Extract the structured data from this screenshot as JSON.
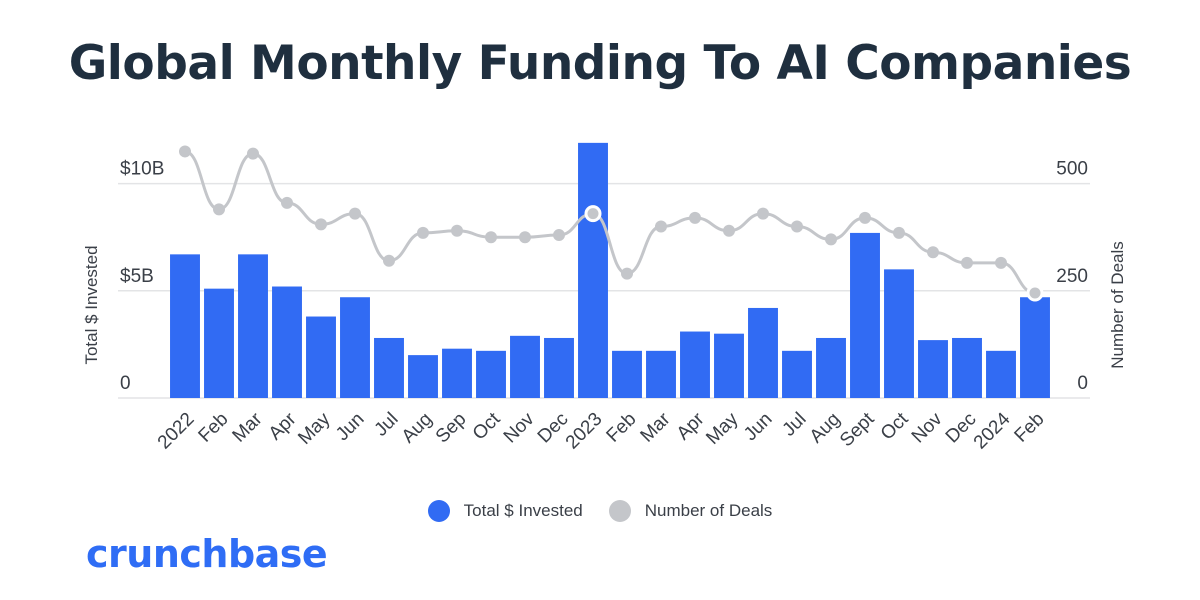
{
  "title": "Global Monthly Funding To AI Companies",
  "brand": {
    "name": "crunchbase",
    "color": "#2f6df5"
  },
  "colors": {
    "bar": "#316bf3",
    "line": "#c4c6ca",
    "grid": "#e3e4e6"
  },
  "chart_data": {
    "type": "bar",
    "title": "Global Monthly Funding To AI Companies",
    "categories": [
      "2022",
      "Feb",
      "Mar",
      "Apr",
      "May",
      "Jun",
      "Jul",
      "Aug",
      "Sep",
      "Oct",
      "Nov",
      "Dec",
      "2023",
      "Feb",
      "Mar",
      "Apr",
      "May",
      "Jun",
      "Jul",
      "Aug",
      "Sept",
      "Oct",
      "Nov",
      "Dec",
      "2024",
      "Feb"
    ],
    "series": [
      {
        "name": "Total $ Invested",
        "type": "bar",
        "axis": "left",
        "values": [
          6.7,
          5.1,
          6.7,
          5.2,
          3.8,
          4.7,
          2.8,
          2.0,
          2.3,
          2.2,
          2.9,
          2.8,
          11.9,
          2.2,
          2.2,
          3.1,
          3.0,
          4.2,
          2.2,
          2.8,
          7.7,
          6.0,
          2.7,
          2.8,
          2.2,
          4.7
        ]
      },
      {
        "name": "Number of Deals",
        "type": "line",
        "axis": "right",
        "values": [
          575,
          440,
          570,
          455,
          405,
          430,
          320,
          385,
          390,
          375,
          375,
          380,
          430,
          290,
          400,
          420,
          390,
          430,
          400,
          370,
          420,
          385,
          340,
          315,
          315,
          245
        ],
        "highlighted_points": [
          12,
          25
        ]
      }
    ],
    "y_left": {
      "label": "Total $ Invested",
      "ticks": [
        "0",
        "$5B",
        "$10B"
      ],
      "tick_values": [
        0,
        5,
        10
      ],
      "range": [
        0,
        12.5
      ]
    },
    "y_right": {
      "label": "Number of Deals",
      "ticks": [
        "0",
        "250",
        "500"
      ],
      "tick_values": [
        0,
        250,
        500
      ],
      "range": [
        0,
        625
      ]
    },
    "grid": true,
    "legend": [
      {
        "name": "Total $ Invested",
        "color": "#316bf3"
      },
      {
        "name": "Number of Deals",
        "color": "#c4c6ca"
      }
    ],
    "legend_position": "bottom"
  }
}
